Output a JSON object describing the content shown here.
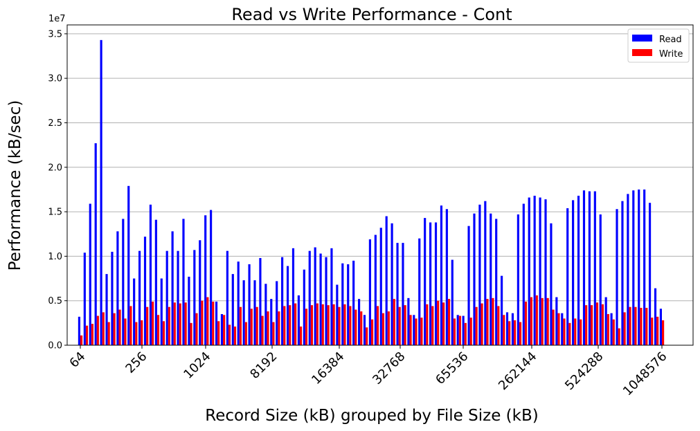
{
  "chart_data": {
    "type": "bar",
    "title": "Read vs Write Performance - Cont",
    "xlabel": "Record Size (kB) grouped by File Size (kB)",
    "ylabel": "Performance (kB/sec)",
    "y_scale_label": "1e7",
    "ylim": [
      0,
      36000000
    ],
    "yticks": [
      0,
      5000000,
      10000000,
      15000000,
      20000000,
      25000000,
      30000000,
      35000000
    ],
    "ytick_labels": [
      "0.0",
      "0.5",
      "1.0",
      "1.5",
      "2.0",
      "2.5",
      "3.0",
      "3.5"
    ],
    "xticks": [
      "64",
      "256",
      "1024",
      "8192",
      "16384",
      "32768",
      "65536",
      "262144",
      "524288",
      "1048576"
    ],
    "grid": "horizontal",
    "legend_position": "top-right",
    "series": [
      {
        "name": "Read",
        "color": "#0000ff",
        "values": [
          3200000,
          10400000,
          15900000,
          22700000,
          34300000,
          8000000,
          10500000,
          12800000,
          14200000,
          17900000,
          7500000,
          10600000,
          12200000,
          15800000,
          14100000,
          7500000,
          10600000,
          12800000,
          10600000,
          14200000,
          7700000,
          10700000,
          11800000,
          14600000,
          15200000,
          4900000,
          3500000,
          10600000,
          8000000,
          9400000,
          7300000,
          9100000,
          7300000,
          9800000,
          6900000,
          5200000,
          7200000,
          9900000,
          8900000,
          10900000,
          5600000,
          8500000,
          10600000,
          11000000,
          10300000,
          9900000,
          10900000,
          6800000,
          9200000,
          9100000,
          9500000,
          5200000,
          3400000,
          11900000,
          12400000,
          13200000,
          14500000,
          13700000,
          11500000,
          11500000,
          5300000,
          3400000,
          12000000,
          14300000,
          13800000,
          13800000,
          15700000,
          15300000,
          9600000,
          3400000,
          3300000,
          13400000,
          14800000,
          15800000,
          16200000,
          14800000,
          14200000,
          7800000,
          3700000,
          3600000,
          14700000,
          15900000,
          16600000,
          16800000,
          16600000,
          16400000,
          13700000,
          5400000,
          3600000,
          15400000,
          16300000,
          16800000,
          17400000,
          17300000,
          17300000,
          14700000,
          5400000,
          3600000,
          15300000,
          16200000,
          17000000,
          17400000,
          17500000,
          17500000,
          16000000,
          6400000,
          4100000
        ],
        "legend_label": "Read"
      },
      {
        "name": "Write",
        "color": "#ff0000",
        "values": [
          1100000,
          2200000,
          2400000,
          3300000,
          3700000,
          2600000,
          3600000,
          4000000,
          3000000,
          4400000,
          2600000,
          2800000,
          4300000,
          4900000,
          3400000,
          2700000,
          4300000,
          4800000,
          4700000,
          4800000,
          2500000,
          3600000,
          5000000,
          5400000,
          4900000,
          2700000,
          3400000,
          2300000,
          2100000,
          4300000,
          2600000,
          4100000,
          4300000,
          3300000,
          3800000,
          2600000,
          3800000,
          4400000,
          4500000,
          4700000,
          2100000,
          4100000,
          4500000,
          4700000,
          4600000,
          4500000,
          4600000,
          4300000,
          4600000,
          4400000,
          4000000,
          3800000,
          2000000,
          2900000,
          4400000,
          3600000,
          3800000,
          5200000,
          4300000,
          4500000,
          3400000,
          3000000,
          3100000,
          4600000,
          4400000,
          5000000,
          4800000,
          5200000,
          3000000,
          3300000,
          2500000,
          3100000,
          4300000,
          4700000,
          5200000,
          5300000,
          4400000,
          3400000,
          2700000,
          2800000,
          2600000,
          4900000,
          5400000,
          5600000,
          5300000,
          5300000,
          4000000,
          3600000,
          3000000,
          2500000,
          3000000,
          2900000,
          4500000,
          4500000,
          4800000,
          4600000,
          3500000,
          2900000,
          1900000,
          3700000,
          4300000,
          4300000,
          4200000,
          4200000,
          3100000,
          3200000,
          2800000
        ],
        "legend_label": "Write"
      }
    ]
  }
}
